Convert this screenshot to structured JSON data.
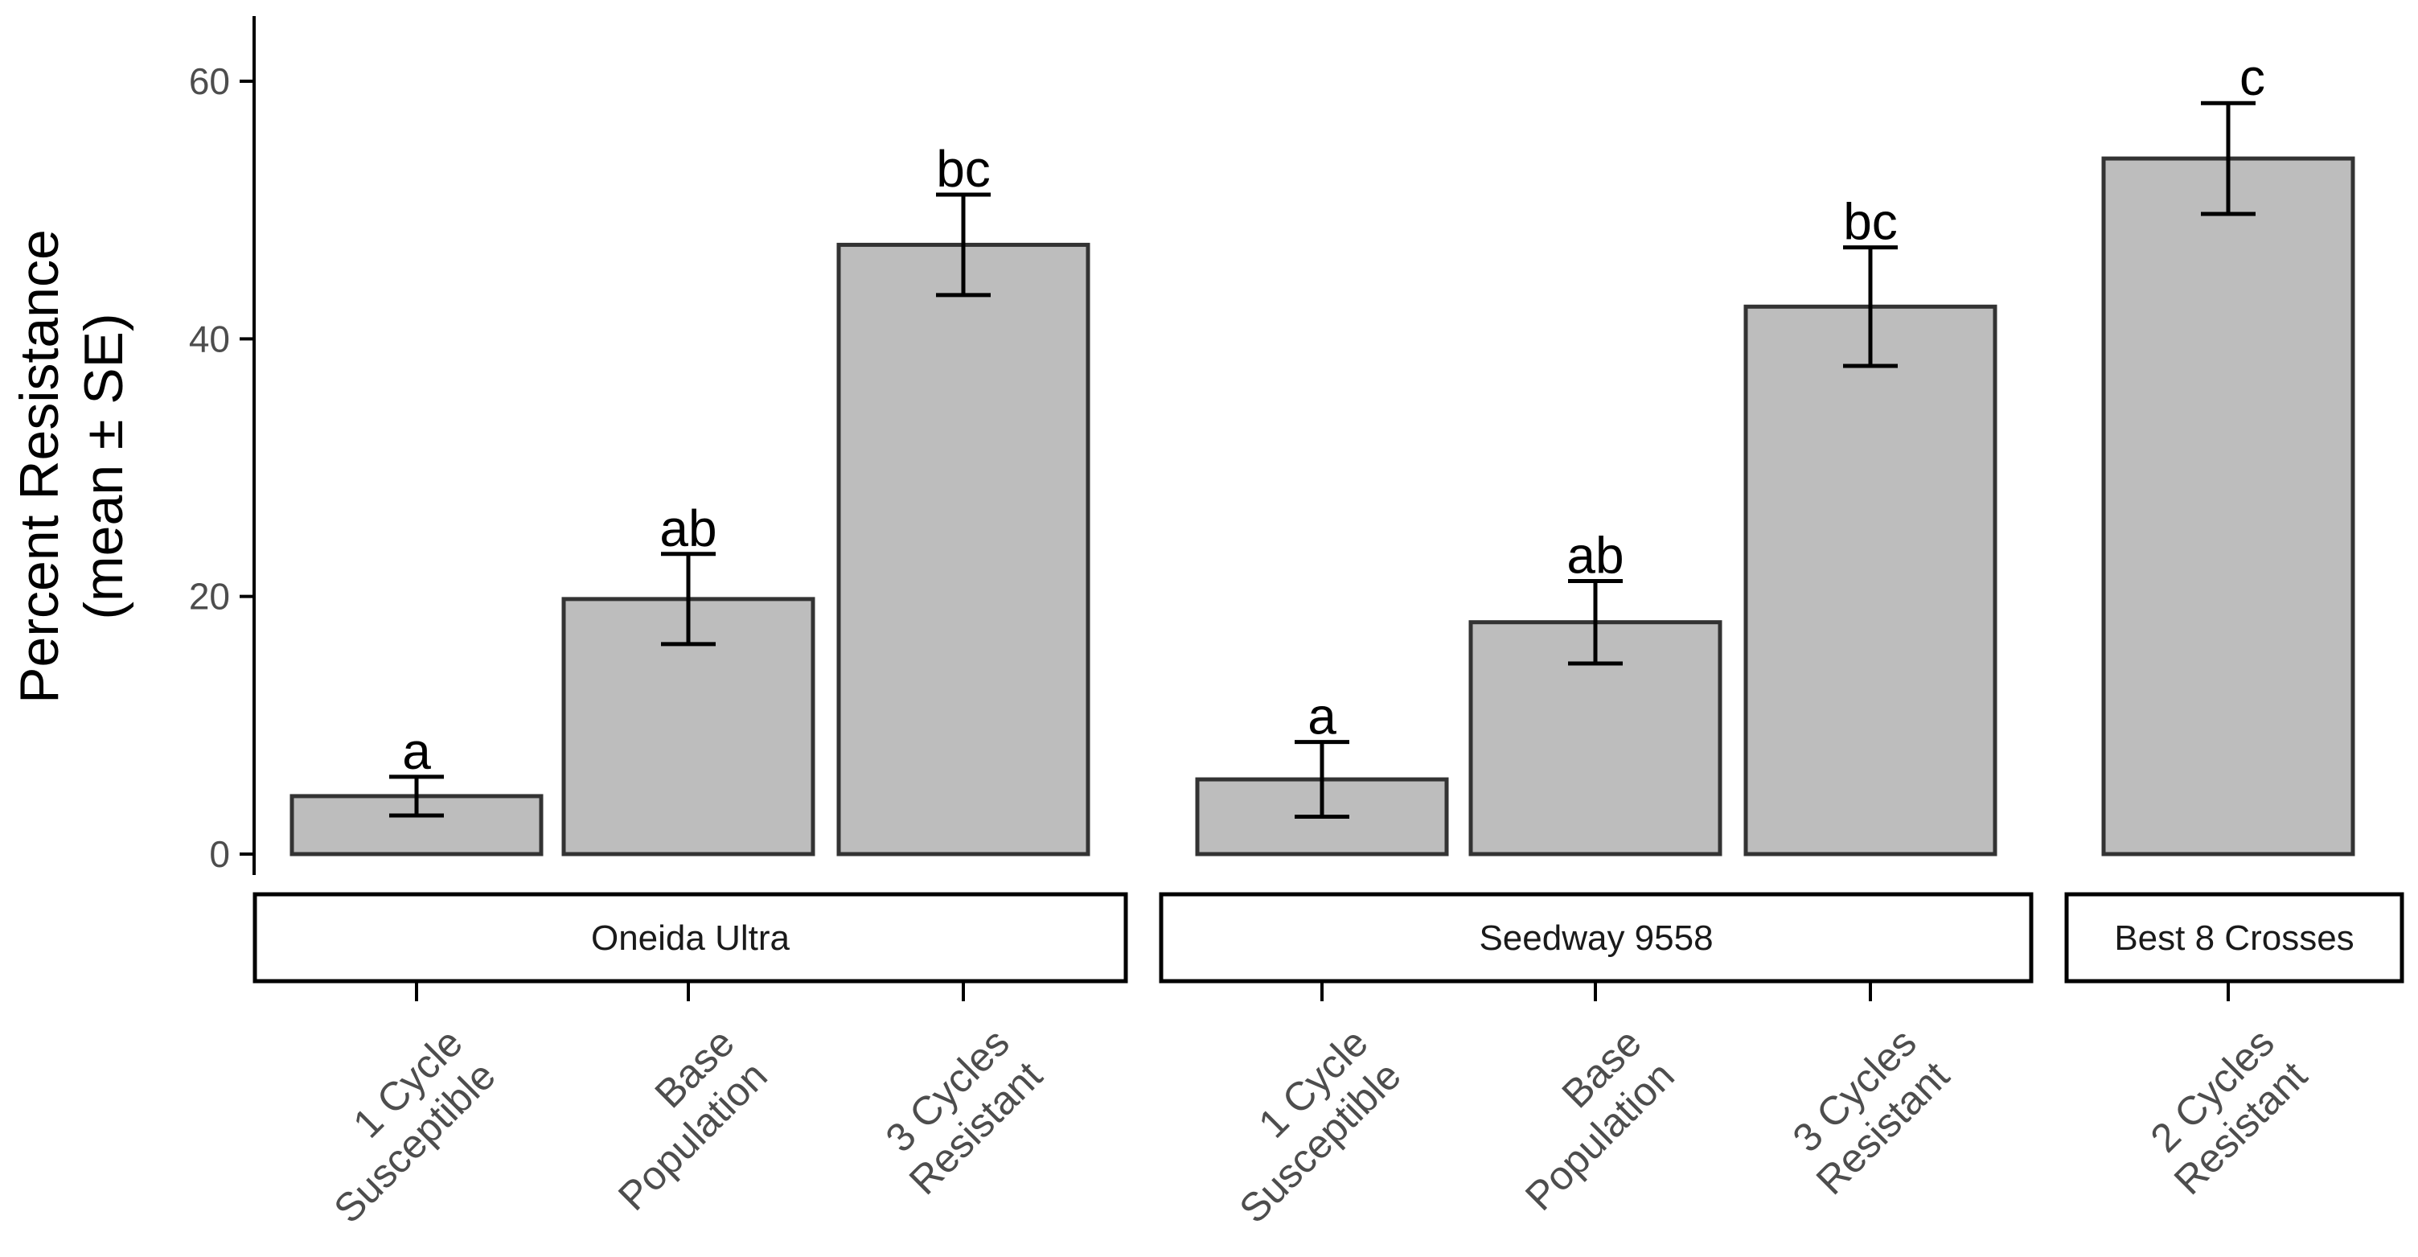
{
  "chart_data": {
    "type": "bar",
    "title": "",
    "ylabel_line1": "Percent Resistance",
    "ylabel_line2": "(mean ± SE)",
    "xlabel": "",
    "ylim": [
      0,
      65
    ],
    "y_ticks": [
      0,
      20,
      40,
      60
    ],
    "y_tick_labels": [
      "0",
      "20",
      "40",
      "60"
    ],
    "panels": [
      {
        "name": "Oneida Ultra",
        "bars": [
          {
            "label_line1": "1 Cycle",
            "label_line2": "Susceptible",
            "value": 4.5,
            "se": 1.5,
            "letter": "a"
          },
          {
            "label_line1": "Base",
            "label_line2": "Population",
            "value": 19.8,
            "se": 3.5,
            "letter": "ab"
          },
          {
            "label_line1": "3 Cycles",
            "label_line2": "Resistant",
            "value": 47.3,
            "se": 3.9,
            "letter": "bc"
          }
        ]
      },
      {
        "name": "Seedway 9558",
        "bars": [
          {
            "label_line1": "1 Cycle",
            "label_line2": "Susceptible",
            "value": 5.8,
            "se": 2.9,
            "letter": "a"
          },
          {
            "label_line1": "Base",
            "label_line2": "Population",
            "value": 18.0,
            "se": 3.2,
            "letter": "ab"
          },
          {
            "label_line1": "3 Cycles",
            "label_line2": "Resistant",
            "value": 42.5,
            "se": 4.6,
            "letter": "bc"
          }
        ]
      },
      {
        "name": "Best 8 Crosses",
        "bars": [
          {
            "label_line1": "2 Cycles",
            "label_line2": "Resistant",
            "value": 54.0,
            "se": 4.3,
            "letter": "c"
          }
        ]
      }
    ],
    "colors": {
      "bar_fill": "#bdbdbd",
      "bar_stroke": "#333333",
      "axis": "#000000",
      "tick_text": "#4d4d4d",
      "text": "#000000"
    }
  }
}
